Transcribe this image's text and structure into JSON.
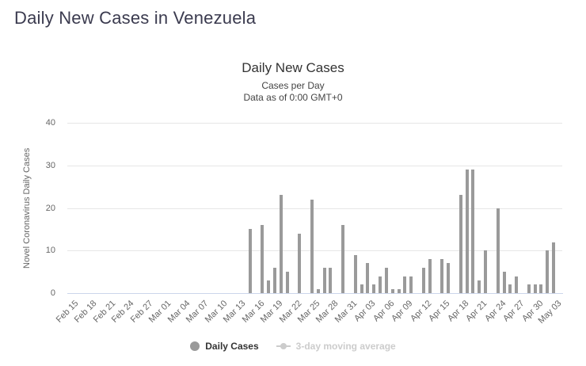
{
  "page": {
    "title": "Daily New Cases in Venezuela"
  },
  "chart_data": {
    "type": "bar",
    "title": "Daily New Cases",
    "subtitle_line1": "Cases per Day",
    "subtitle_line2": "Data as of 0:00 GMT+0",
    "ylabel": "Novel Coronavirus Daily Cases",
    "ylim": [
      0,
      40
    ],
    "yticks": [
      0,
      10,
      20,
      30,
      40
    ],
    "x_tick_step": 3,
    "grid": "on",
    "legend_position": "bottom",
    "categories": [
      "Feb 15",
      "Feb 16",
      "Feb 17",
      "Feb 18",
      "Feb 19",
      "Feb 20",
      "Feb 21",
      "Feb 22",
      "Feb 23",
      "Feb 24",
      "Feb 25",
      "Feb 26",
      "Feb 27",
      "Feb 28",
      "Feb 29",
      "Mar 01",
      "Mar 02",
      "Mar 03",
      "Mar 04",
      "Mar 05",
      "Mar 06",
      "Mar 07",
      "Mar 08",
      "Mar 09",
      "Mar 10",
      "Mar 11",
      "Mar 12",
      "Mar 13",
      "Mar 14",
      "Mar 15",
      "Mar 16",
      "Mar 17",
      "Mar 18",
      "Mar 19",
      "Mar 20",
      "Mar 21",
      "Mar 22",
      "Mar 23",
      "Mar 24",
      "Mar 25",
      "Mar 26",
      "Mar 27",
      "Mar 28",
      "Mar 29",
      "Mar 30",
      "Mar 31",
      "Apr 01",
      "Apr 02",
      "Apr 03",
      "Apr 04",
      "Apr 05",
      "Apr 06",
      "Apr 07",
      "Apr 08",
      "Apr 09",
      "Apr 10",
      "Apr 11",
      "Apr 12",
      "Apr 13",
      "Apr 14",
      "Apr 15",
      "Apr 16",
      "Apr 17",
      "Apr 18",
      "Apr 19",
      "Apr 20",
      "Apr 21",
      "Apr 22",
      "Apr 23",
      "Apr 24",
      "Apr 25",
      "Apr 26",
      "Apr 27",
      "Apr 28",
      "Apr 29",
      "Apr 30",
      "May 01",
      "May 02",
      "May 03"
    ],
    "series": [
      {
        "name": "Daily Cases",
        "type": "column",
        "color": "#9a9a9a",
        "visible": true,
        "values": [
          0,
          0,
          0,
          0,
          0,
          0,
          0,
          0,
          0,
          0,
          0,
          0,
          0,
          0,
          0,
          0,
          0,
          0,
          0,
          0,
          0,
          0,
          0,
          0,
          0,
          0,
          0,
          0,
          0,
          15,
          0,
          16,
          3,
          6,
          23,
          5,
          0,
          14,
          0,
          22,
          1,
          6,
          6,
          0,
          16,
          0,
          9,
          2,
          7,
          2,
          4,
          6,
          1,
          1,
          4,
          4,
          0,
          6,
          8,
          0,
          8,
          7,
          0,
          23,
          29,
          29,
          3,
          10,
          0,
          20,
          5,
          2,
          4,
          0,
          2,
          2,
          2,
          10,
          12
        ]
      },
      {
        "name": "3-day moving average",
        "type": "line",
        "color": "#cccccc",
        "visible": false,
        "values": []
      }
    ],
    "colors": {
      "grid": "#e6e6e6",
      "axis_line": "#ccd6eb",
      "axis_label": "#666666",
      "title": "#333333",
      "page_title": "#3b3b4f",
      "legend_active": "#333333",
      "legend_hidden": "#cccccc"
    }
  }
}
